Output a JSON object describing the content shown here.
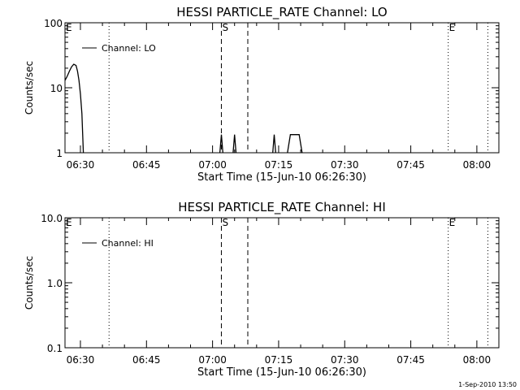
{
  "footer": "1-Sep-2010 13:50",
  "chart_data": [
    {
      "type": "line",
      "title": "HESSI PARTICLE_RATE Channel: LO",
      "xlabel": "Start Time (15-Jun-10 06:26:30)",
      "ylabel": "Counts/sec",
      "yscale": "log",
      "ylim": [
        1,
        100
      ],
      "y_tick_labels": [
        "1",
        "10",
        "100"
      ],
      "y_tick_values": [
        1,
        10,
        100
      ],
      "xlim": [
        "06:26:30",
        "08:05:00"
      ],
      "x_tick_labels": [
        "06:30",
        "06:45",
        "07:00",
        "07:15",
        "07:30",
        "07:45",
        "08:00"
      ],
      "legend": {
        "label": "Channel: LO",
        "placement": "top-left"
      },
      "markers": [
        {
          "label": "E",
          "time": "06:26:30",
          "style": "none"
        },
        {
          "label": "",
          "time": "06:36:30",
          "style": "dotted"
        },
        {
          "label": "S",
          "time": "07:02:00",
          "style": "dashed"
        },
        {
          "label": "",
          "time": "07:08:00",
          "style": "dashed"
        },
        {
          "label": "E",
          "time": "07:53:30",
          "style": "dotted"
        },
        {
          "label": "",
          "time": "08:02:30",
          "style": "dotted"
        }
      ],
      "series": [
        {
          "name": "Channel: LO",
          "segments": [
            [
              [
                "06:26:30",
                13
              ],
              [
                "06:27:00",
                15
              ],
              [
                "06:27:30",
                18
              ],
              [
                "06:28:00",
                21
              ],
              [
                "06:28:30",
                23
              ],
              [
                "06:29:00",
                22
              ],
              [
                "06:29:20",
                18
              ],
              [
                "06:29:40",
                13
              ],
              [
                "06:30:00",
                8
              ],
              [
                "06:30:20",
                4
              ],
              [
                "06:30:40",
                1
              ]
            ],
            [
              [
                "07:01:40",
                1
              ],
              [
                "07:02:00",
                1.9
              ],
              [
                "07:02:20",
                1
              ]
            ],
            [
              [
                "07:04:40",
                1
              ],
              [
                "07:05:00",
                1.9
              ],
              [
                "07:05:20",
                1
              ]
            ],
            [
              [
                "07:13:40",
                1
              ],
              [
                "07:14:00",
                1.9
              ],
              [
                "07:14:20",
                1
              ]
            ],
            [
              [
                "07:17:00",
                1
              ],
              [
                "07:17:40",
                1.9
              ],
              [
                "07:19:40",
                1.9
              ],
              [
                "07:20:20",
                1
              ]
            ]
          ]
        }
      ]
    },
    {
      "type": "line",
      "title": "HESSI PARTICLE_RATE Channel: HI",
      "xlabel": "Start Time (15-Jun-10 06:26:30)",
      "ylabel": "Counts/sec",
      "yscale": "log",
      "ylim": [
        0.1,
        10
      ],
      "y_tick_labels": [
        "0.1",
        "1.0",
        "10.0"
      ],
      "y_tick_values": [
        0.1,
        1,
        10
      ],
      "xlim": [
        "06:26:30",
        "08:05:00"
      ],
      "x_tick_labels": [
        "06:30",
        "06:45",
        "07:00",
        "07:15",
        "07:30",
        "07:45",
        "08:00"
      ],
      "legend": {
        "label": "Channel: HI",
        "placement": "top-left"
      },
      "markers": [
        {
          "label": "E",
          "time": "06:26:30",
          "style": "none"
        },
        {
          "label": "",
          "time": "06:36:30",
          "style": "dotted"
        },
        {
          "label": "S",
          "time": "07:02:00",
          "style": "dashed"
        },
        {
          "label": "",
          "time": "07:08:00",
          "style": "dashed"
        },
        {
          "label": "E",
          "time": "07:53:30",
          "style": "dotted"
        },
        {
          "label": "",
          "time": "08:02:30",
          "style": "dotted"
        }
      ],
      "series": [
        {
          "name": "Channel: HI",
          "segments": []
        }
      ]
    }
  ]
}
